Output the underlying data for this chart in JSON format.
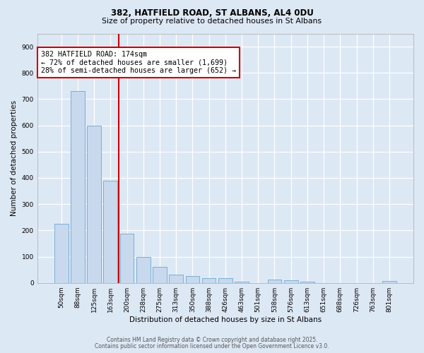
{
  "title1": "382, HATFIELD ROAD, ST ALBANS, AL4 0DU",
  "title2": "Size of property relative to detached houses in St Albans",
  "xlabel": "Distribution of detached houses by size in St Albans",
  "ylabel": "Number of detached properties",
  "categories": [
    "50sqm",
    "88sqm",
    "125sqm",
    "163sqm",
    "200sqm",
    "238sqm",
    "275sqm",
    "313sqm",
    "350sqm",
    "388sqm",
    "426sqm",
    "463sqm",
    "501sqm",
    "538sqm",
    "576sqm",
    "613sqm",
    "651sqm",
    "688sqm",
    "726sqm",
    "763sqm",
    "801sqm"
  ],
  "values": [
    225,
    730,
    600,
    390,
    188,
    100,
    60,
    32,
    25,
    17,
    17,
    5,
    0,
    12,
    10,
    5,
    0,
    0,
    0,
    0,
    8
  ],
  "bar_color": "#c8d9ee",
  "bar_edge_color": "#7aafd4",
  "vline_x": 3.5,
  "vline_color": "#cc0000",
  "annotation_text": "382 HATFIELD ROAD: 174sqm\n← 72% of detached houses are smaller (1,699)\n28% of semi-detached houses are larger (652) →",
  "annotation_box_color": "#ffffff",
  "annotation_box_edge": "#cc0000",
  "ylim": [
    0,
    950
  ],
  "yticks": [
    0,
    100,
    200,
    300,
    400,
    500,
    600,
    700,
    800,
    900
  ],
  "bg_color": "#dde8f5",
  "footer1": "Contains HM Land Registry data © Crown copyright and database right 2025.",
  "footer2": "Contains public sector information licensed under the Open Government Licence v3.0."
}
